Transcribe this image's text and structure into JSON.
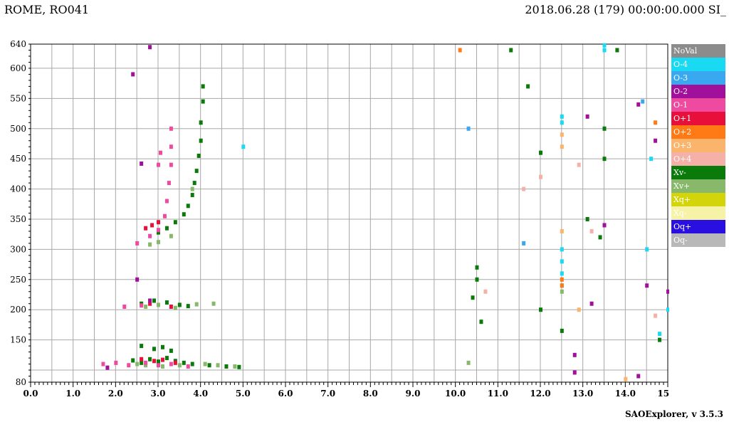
{
  "header": {
    "station": "ROME, RO041",
    "datetime": "2018.06.28 (179) 00:00:00.000 SI_"
  },
  "footer": {
    "software": "SAOExplorer, v 3.5.3"
  },
  "legend": {
    "items": [
      {
        "label": "NoVal",
        "color": "#8c8c8c"
      },
      {
        "label": "O-4",
        "color": "#1ad9f2"
      },
      {
        "label": "O-3",
        "color": "#3aa8f0"
      },
      {
        "label": "O-2",
        "color": "#a0109a"
      },
      {
        "label": "O-1",
        "color": "#ee4aa0"
      },
      {
        "label": "O+1",
        "color": "#e8103a"
      },
      {
        "label": "O+2",
        "color": "#ff7a14"
      },
      {
        "label": "O+3",
        "color": "#fbb46c"
      },
      {
        "label": "O+4",
        "color": "#f5b0a8"
      },
      {
        "label": "Xv-",
        "color": "#0a7a0a"
      },
      {
        "label": "Xv+",
        "color": "#88b86a"
      },
      {
        "label": "Xq+",
        "color": "#d4d40a"
      },
      {
        "label": "Xq-",
        "color": "#f6f2a6"
      },
      {
        "label": "Oq+",
        "color": "#2a10e0"
      },
      {
        "label": "Oq-",
        "color": "#b8b8b8"
      }
    ]
  },
  "chart_data": {
    "type": "scatter",
    "title": "",
    "xlabel": "",
    "ylabel": "",
    "xlim": [
      0,
      15
    ],
    "ylim": [
      80,
      640
    ],
    "x_ticks": [
      "0.0",
      "1.0",
      "2.0",
      "3.0",
      "4.0",
      "5.0",
      "6.0",
      "7.0",
      "8.0",
      "9.0",
      "10.0",
      "11.0",
      "12.0",
      "13.0",
      "14.0",
      "15.0"
    ],
    "y_ticks": [
      "80",
      "150",
      "200",
      "250",
      "300",
      "350",
      "400",
      "450",
      "500",
      "550",
      "600",
      "640"
    ],
    "grid": true,
    "series": [
      {
        "name": "Xv-",
        "color": "#0a7a0a",
        "points": [
          [
            2.4,
            116
          ],
          [
            2.6,
            112
          ],
          [
            2.8,
            118
          ],
          [
            3.0,
            114
          ],
          [
            3.2,
            120
          ],
          [
            3.4,
            115
          ],
          [
            3.6,
            112
          ],
          [
            3.8,
            110
          ],
          [
            4.2,
            108
          ],
          [
            4.6,
            106
          ],
          [
            4.9,
            105
          ],
          [
            2.6,
            140
          ],
          [
            2.9,
            135
          ],
          [
            3.1,
            138
          ],
          [
            3.3,
            132
          ],
          [
            2.6,
            210
          ],
          [
            2.9,
            215
          ],
          [
            3.2,
            212
          ],
          [
            3.5,
            208
          ],
          [
            3.7,
            206
          ],
          [
            3.0,
            328
          ],
          [
            3.2,
            335
          ],
          [
            3.4,
            345
          ],
          [
            3.6,
            358
          ],
          [
            3.7,
            372
          ],
          [
            3.8,
            390
          ],
          [
            3.85,
            410
          ],
          [
            3.9,
            430
          ],
          [
            3.95,
            455
          ],
          [
            4.0,
            480
          ],
          [
            4.0,
            510
          ],
          [
            4.05,
            545
          ],
          [
            4.05,
            570
          ],
          [
            10.4,
            220
          ],
          [
            10.5,
            250
          ],
          [
            10.5,
            270
          ],
          [
            10.6,
            180
          ],
          [
            11.3,
            630
          ],
          [
            11.7,
            570
          ],
          [
            12.0,
            460
          ],
          [
            12.0,
            200
          ],
          [
            12.5,
            165
          ],
          [
            13.1,
            350
          ],
          [
            13.4,
            320
          ],
          [
            13.5,
            500
          ],
          [
            13.5,
            450
          ],
          [
            13.8,
            630
          ],
          [
            14.8,
            150
          ]
        ]
      },
      {
        "name": "Xv+",
        "color": "#88b86a",
        "points": [
          [
            2.5,
            110
          ],
          [
            2.7,
            108
          ],
          [
            3.1,
            106
          ],
          [
            3.5,
            108
          ],
          [
            4.1,
            110
          ],
          [
            4.4,
            108
          ],
          [
            4.8,
            106
          ],
          [
            2.7,
            205
          ],
          [
            3.0,
            208
          ],
          [
            3.4,
            203
          ],
          [
            3.9,
            209
          ],
          [
            4.3,
            210
          ],
          [
            2.8,
            308
          ],
          [
            3.0,
            312
          ],
          [
            3.3,
            322
          ],
          [
            3.8,
            400
          ],
          [
            10.3,
            112
          ],
          [
            12.5,
            230
          ]
        ]
      },
      {
        "name": "O-1",
        "color": "#ee4aa0",
        "points": [
          [
            1.7,
            110
          ],
          [
            2.0,
            112
          ],
          [
            2.3,
            108
          ],
          [
            2.7,
            112
          ],
          [
            3.0,
            108
          ],
          [
            3.3,
            110
          ],
          [
            3.7,
            106
          ],
          [
            2.2,
            205
          ],
          [
            2.6,
            207
          ],
          [
            2.5,
            310
          ],
          [
            2.8,
            322
          ],
          [
            3.0,
            332
          ],
          [
            3.15,
            355
          ],
          [
            3.2,
            380
          ],
          [
            3.25,
            410
          ],
          [
            3.3,
            440
          ],
          [
            3.3,
            470
          ],
          [
            3.3,
            500
          ],
          [
            3.05,
            460
          ],
          [
            3.0,
            440
          ]
        ]
      },
      {
        "name": "O+1",
        "color": "#e8103a",
        "points": [
          [
            2.6,
            118
          ],
          [
            2.9,
            115
          ],
          [
            3.1,
            117
          ],
          [
            3.4,
            112
          ],
          [
            2.8,
            210
          ],
          [
            3.3,
            205
          ],
          [
            2.7,
            335
          ],
          [
            2.85,
            340
          ],
          [
            3.0,
            345
          ]
        ]
      },
      {
        "name": "O-2",
        "color": "#a0109a",
        "points": [
          [
            1.8,
            104
          ],
          [
            2.5,
            250
          ],
          [
            2.8,
            215
          ],
          [
            2.6,
            442
          ],
          [
            2.4,
            590
          ],
          [
            2.8,
            635
          ],
          [
            12.8,
            96
          ],
          [
            13.1,
            520
          ],
          [
            13.2,
            210
          ],
          [
            14.3,
            540
          ],
          [
            14.5,
            240
          ],
          [
            14.7,
            480
          ],
          [
            15.0,
            230
          ],
          [
            12.8,
            125
          ],
          [
            13.5,
            340
          ],
          [
            14.3,
            90
          ]
        ]
      },
      {
        "name": "O-4",
        "color": "#1ad9f2",
        "points": [
          [
            5.0,
            470
          ],
          [
            12.5,
            510
          ],
          [
            12.5,
            520
          ],
          [
            12.5,
            300
          ],
          [
            12.5,
            280
          ],
          [
            12.5,
            260
          ],
          [
            12.5,
            240
          ],
          [
            13.5,
            638
          ],
          [
            13.5,
            630
          ],
          [
            14.5,
            300
          ],
          [
            14.6,
            450
          ],
          [
            14.8,
            160
          ],
          [
            15.0,
            200
          ]
        ]
      },
      {
        "name": "O-3",
        "color": "#3aa8f0",
        "points": [
          [
            10.3,
            500
          ],
          [
            11.6,
            310
          ],
          [
            14.4,
            545
          ]
        ]
      },
      {
        "name": "O+2",
        "color": "#ff7a14",
        "points": [
          [
            12.5,
            240
          ],
          [
            12.5,
            250
          ],
          [
            14.7,
            510
          ],
          [
            10.1,
            630
          ]
        ]
      },
      {
        "name": "O+3",
        "color": "#fbb46c",
        "points": [
          [
            12.5,
            490
          ],
          [
            12.5,
            470
          ],
          [
            12.5,
            330
          ],
          [
            12.9,
            200
          ],
          [
            14.0,
            85
          ]
        ]
      },
      {
        "name": "O+4",
        "color": "#f5b0a8",
        "points": [
          [
            10.7,
            230
          ],
          [
            11.6,
            400
          ],
          [
            12.0,
            420
          ],
          [
            12.9,
            440
          ],
          [
            13.2,
            330
          ],
          [
            14.7,
            190
          ]
        ]
      }
    ]
  }
}
